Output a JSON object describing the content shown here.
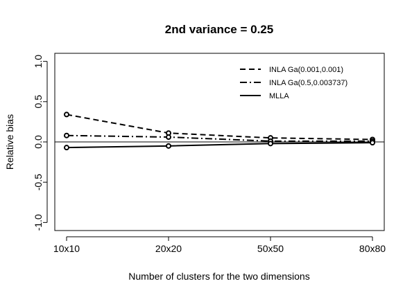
{
  "chart_data": {
    "type": "line",
    "title": "2nd variance = 0.25",
    "xlabel": "Number of clusters for the two dimensions",
    "ylabel": "Relative bias",
    "categories": [
      "10x10",
      "20x20",
      "50x50",
      "80x80"
    ],
    "ylim": [
      -1.1,
      1.1
    ],
    "yticks": [
      -1.0,
      -0.5,
      0.0,
      0.5,
      1.0
    ],
    "ytick_labels": [
      "-1.0",
      "-0.5",
      "0.0",
      "0.5",
      "1.0"
    ],
    "reference_line": 0,
    "grid": false,
    "legend_position": "top-right",
    "series": [
      {
        "name": "INLA Ga(0.001,0.001)",
        "values": [
          0.34,
          0.11,
          0.05,
          0.03
        ],
        "linestyle": "dashed",
        "markers": true
      },
      {
        "name": "INLA Ga(0.5,0.003737)",
        "values": [
          0.08,
          0.06,
          0.01,
          0.01
        ],
        "linestyle": "dashdot",
        "markers": true
      },
      {
        "name": "MLLA",
        "values": [
          -0.07,
          -0.05,
          -0.02,
          -0.01
        ],
        "linestyle": "solid",
        "markers": true
      }
    ],
    "colors": {
      "line": "#000000",
      "background": "#ffffff"
    }
  }
}
